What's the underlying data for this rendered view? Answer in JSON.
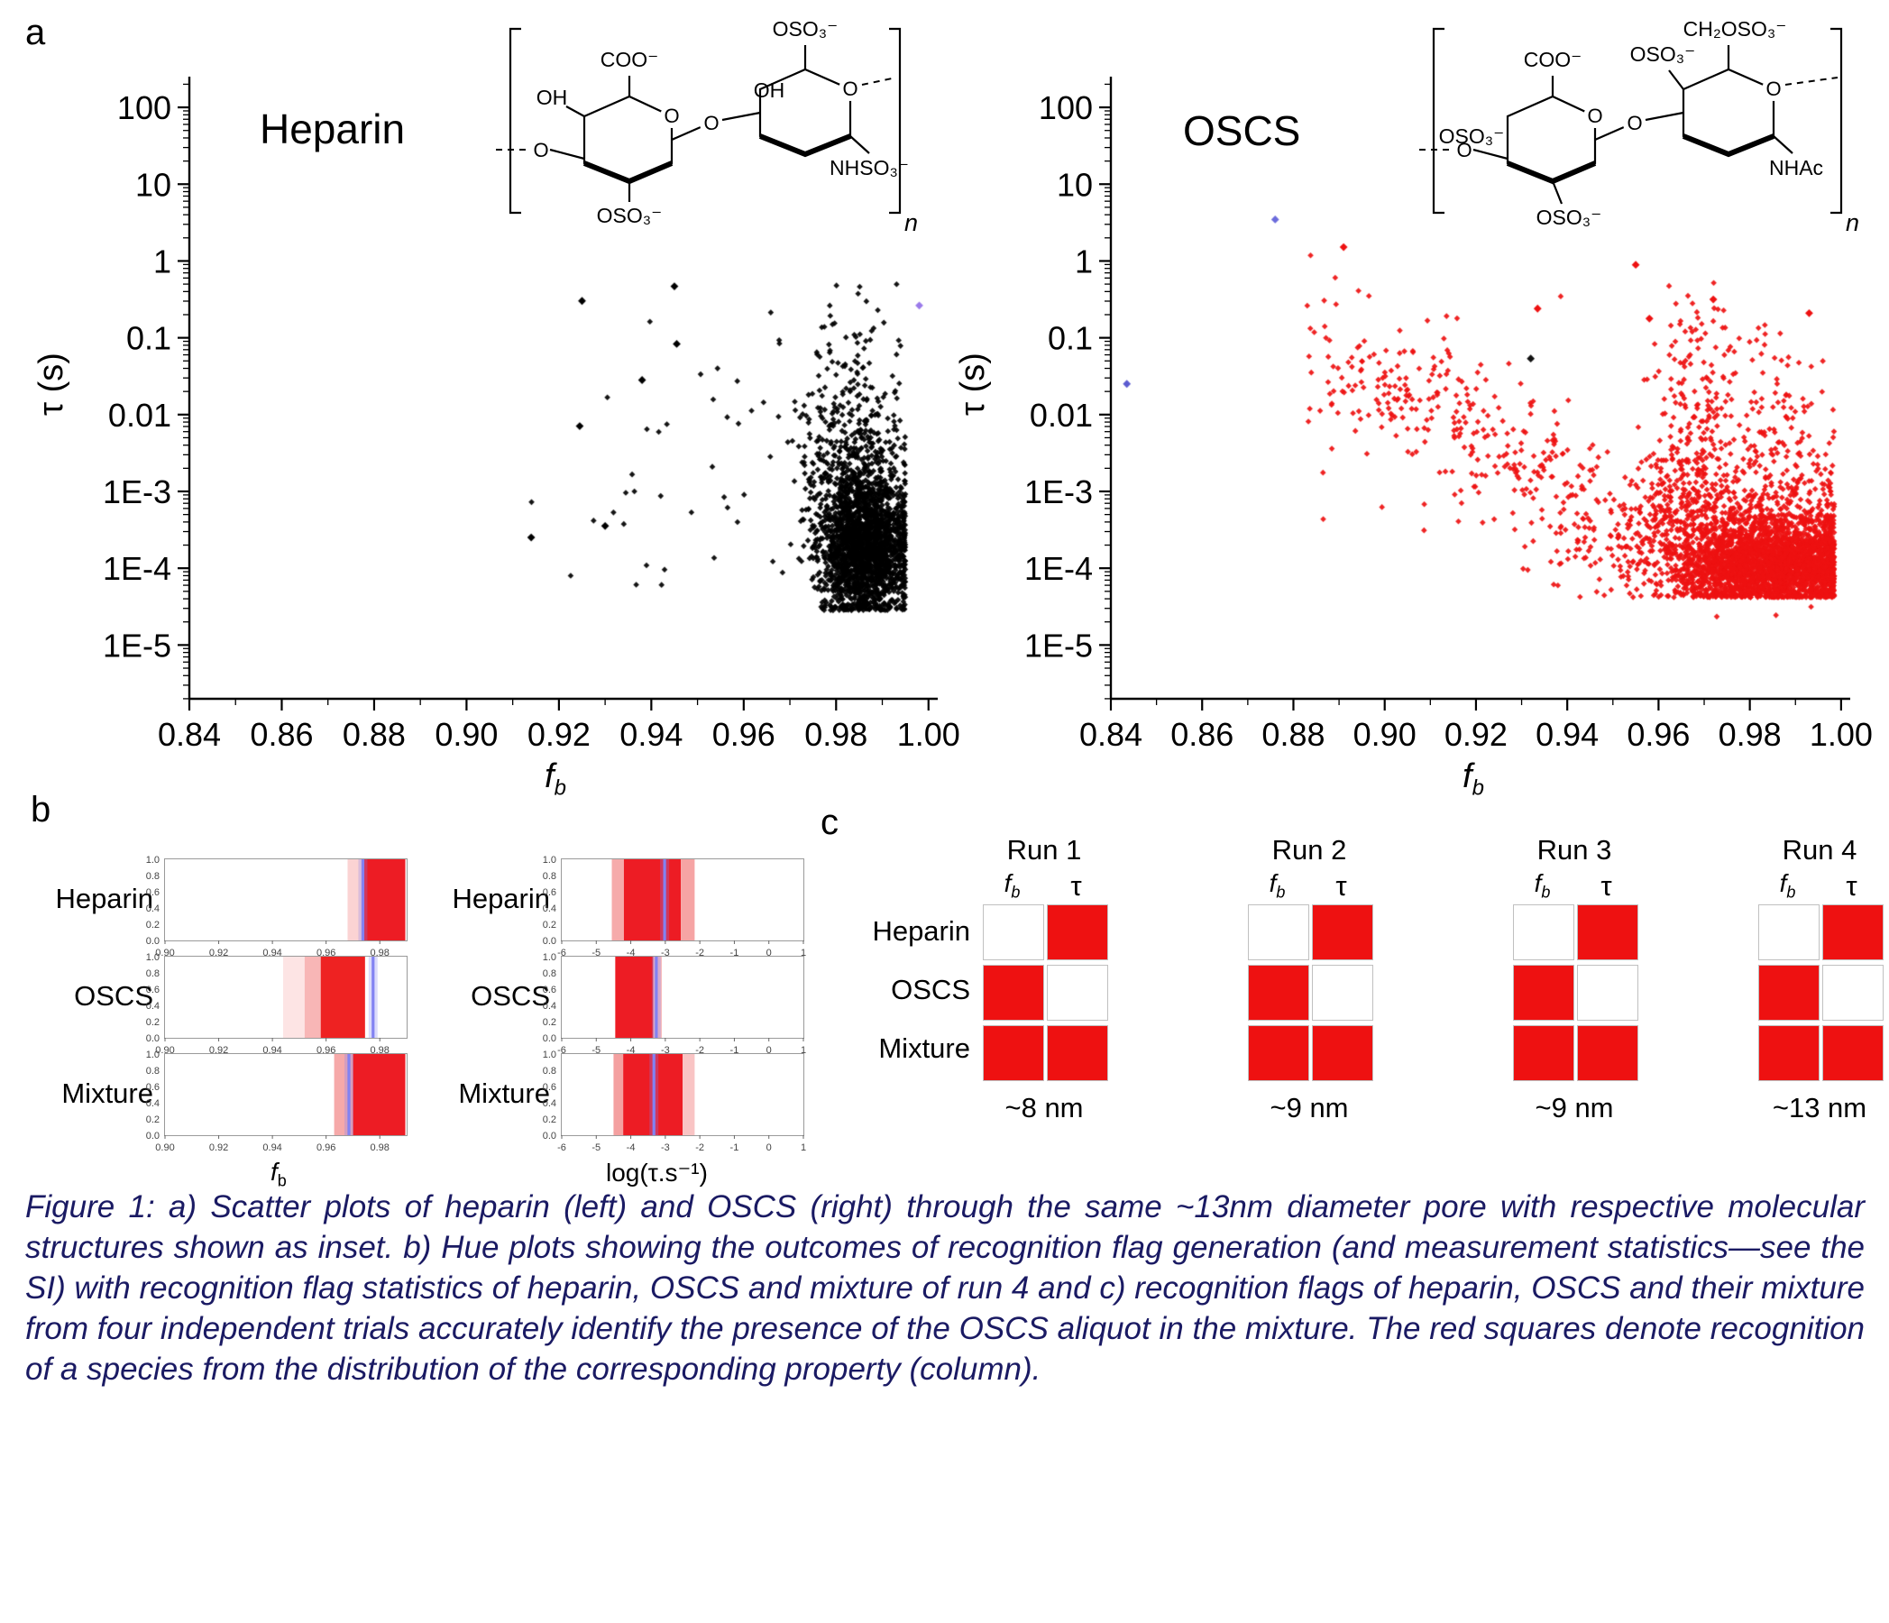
{
  "panel_a": {
    "label": "a"
  },
  "panel_b": {
    "label": "b",
    "xlabel_fb_main": "f",
    "xlabel_fb_sub": "b",
    "xlabel_tau": "log(τ.s⁻¹)"
  },
  "panel_c": {
    "label": "c",
    "col_fb_main": "f",
    "col_fb_sub": "b",
    "col_tau": "τ",
    "row_labels": [
      "Heparin",
      "OSCS",
      "Mixture"
    ],
    "runs": [
      {
        "title": "Run 1",
        "pore": "~8 nm"
      },
      {
        "title": "Run 2",
        "pore": "~9 nm"
      },
      {
        "title": "Run 3",
        "pore": "~9 nm"
      },
      {
        "title": "Run 4",
        "pore": "~13 nm"
      }
    ],
    "flags_by_run": [
      [
        [
          0,
          1
        ],
        [
          1,
          0
        ],
        [
          1,
          1
        ]
      ],
      [
        [
          0,
          1
        ],
        [
          1,
          0
        ],
        [
          1,
          1
        ]
      ],
      [
        [
          0,
          1
        ],
        [
          1,
          0
        ],
        [
          1,
          1
        ]
      ],
      [
        [
          0,
          1
        ],
        [
          1,
          0
        ],
        [
          1,
          1
        ]
      ]
    ],
    "flag_color": "#ee1111"
  },
  "structures": {
    "heparin": {
      "oso3_top": "OSO₃⁻",
      "oh_mid": "OH",
      "coo": "COO⁻",
      "oh_left": "OH",
      "oso3_bottom": "OSO₃⁻",
      "nhso3": "NHSO₃⁻",
      "ring_o": "O",
      "n": "n"
    },
    "oscs": {
      "ch2oso3": "CH₂OSO₃⁻",
      "coo": "COO⁻",
      "oso3_left": "OSO₃⁻",
      "oso3_mid": "OSO₃⁻",
      "oso3_bottom": "OSO₃⁻",
      "nhac": "NHAc",
      "ring_o": "O",
      "n": "n"
    }
  },
  "caption": {
    "text": "Figure 1: a) Scatter plots of heparin (left) and OSCS (right) through the same ~13nm diameter pore with respective molecular structures shown as inset. b) Hue plots showing the outcomes of recognition flag generation (and measurement statistics—see the SI) with recognition flag statistics of heparin, OSCS and mixture of run 4 and c) recognition flags of heparin, OSCS and their mixture from four independent trials accurately identify the presence of the OSCS aliquot in the mixture. The red squares denote recognition of a species from the distribution of the corresponding property (column).",
    "color": "#1a1a63"
  },
  "chart_data": [
    {
      "id": "heparin",
      "type": "scatter",
      "title": "Heparin",
      "xlabel_main": "f",
      "xlabel_sub": "b",
      "ylabel": "τ (s)",
      "xlim": [
        0.84,
        1.002
      ],
      "ylim_log": [
        -5.7,
        2.4
      ],
      "xticks": [
        0.84,
        0.86,
        0.88,
        0.9,
        0.92,
        0.94,
        0.96,
        0.98,
        1.0
      ],
      "ytick_labels": [
        "100",
        "10",
        "1",
        "0.1",
        "0.01",
        "1E-3",
        "1E-4",
        "1E-5"
      ],
      "ytick_logs": [
        2,
        1,
        0,
        -1,
        -2,
        -3,
        -4,
        -5
      ],
      "color": "#000000",
      "seed": 42,
      "clusters": [
        {
          "n": 1900,
          "fb_mean": 0.9862,
          "fb_sd": 0.0048,
          "fb_min": 0.966,
          "fb_max": 0.995,
          "lt_mean": -3.75,
          "lt_sd": 0.45,
          "lt_min": -4.55
        },
        {
          "n": 520,
          "fb_mean": 0.984,
          "fb_sd": 0.006,
          "fb_min": 0.96,
          "fb_max": 0.995,
          "lt_mean": -2.85,
          "lt_sd": 0.6,
          "lt_min": -4.55
        },
        {
          "n": 90,
          "fb_mean": 0.982,
          "fb_sd": 0.007,
          "fb_min": 0.958,
          "fb_max": 0.994,
          "lt_mean": -1.55,
          "lt_sd": 0.55,
          "lt_max": -0.3
        },
        {
          "n": 42,
          "fb_mean": 0.95,
          "fb_sd": 0.02,
          "fb_min": 0.908,
          "fb_max": 0.978,
          "lt_mean": -3.1,
          "lt_sd": 0.95,
          "lt_min": -4.4
        }
      ],
      "outliers": [
        {
          "fb": 0.925,
          "lt": -0.52,
          "color": "#000000"
        },
        {
          "fb": 0.9245,
          "lt": -2.15,
          "color": "#000000"
        },
        {
          "fb": 0.945,
          "lt": -0.33,
          "color": "#000000"
        },
        {
          "fb": 0.9455,
          "lt": -1.08,
          "color": "#000000"
        },
        {
          "fb": 0.938,
          "lt": -1.55,
          "color": "#000000"
        },
        {
          "fb": 0.93,
          "lt": -3.45,
          "color": "#000000"
        },
        {
          "fb": 0.914,
          "lt": -3.6,
          "color": "#000000"
        },
        {
          "fb": 0.998,
          "lt": -0.58,
          "color": "#9b7bea"
        }
      ]
    },
    {
      "id": "oscs",
      "type": "scatter",
      "title": "OSCS",
      "xlabel_main": "f",
      "xlabel_sub": "b",
      "ylabel": "τ (s)",
      "xlim": [
        0.84,
        1.002
      ],
      "ylim_log": [
        -5.7,
        2.4
      ],
      "xticks": [
        0.84,
        0.86,
        0.88,
        0.9,
        0.92,
        0.94,
        0.96,
        0.98,
        1.0
      ],
      "ytick_labels": [
        "100",
        "10",
        "1",
        "0.1",
        "0.01",
        "1E-3",
        "1E-4",
        "1E-5"
      ],
      "ytick_logs": [
        2,
        1,
        0,
        -1,
        -2,
        -3,
        -4,
        -5
      ],
      "color": "#ee1111",
      "seed": 7,
      "clusters": [
        {
          "n": 240,
          "band": true,
          "fb_min": 0.883,
          "fb_max": 0.948,
          "lt_from": -0.95,
          "lt_to": -3.25,
          "lt_sd": 0.45
        },
        {
          "n": 2400,
          "fb_mean": 0.986,
          "fb_sd": 0.011,
          "fb_min": 0.935,
          "fb_max": 0.9985,
          "lt_mean": -3.95,
          "lt_sd": 0.27,
          "lt_min": -4.38
        },
        {
          "n": 950,
          "fb_mean": 0.975,
          "fb_sd": 0.016,
          "fb_min": 0.93,
          "fb_max": 0.9985,
          "lt_mean": -3.55,
          "lt_sd": 0.45,
          "lt_min": -4.38
        },
        {
          "n": 230,
          "fb_mean": 0.968,
          "fb_sd": 0.005,
          "fb_min": 0.954,
          "fb_max": 0.982,
          "lt_mean": -2.15,
          "lt_sd": 0.85,
          "lt_max": -0.1
        },
        {
          "n": 170,
          "fb_mean": 0.988,
          "fb_sd": 0.007,
          "fb_min": 0.965,
          "fb_max": 0.9985,
          "lt_mean": -2.45,
          "lt_sd": 0.75,
          "lt_max": -0.45
        },
        {
          "n": 70,
          "fb_mean": 0.91,
          "fb_sd": 0.012,
          "fb_min": 0.885,
          "fb_max": 0.94,
          "lt_mean": -2.0,
          "lt_sd": 0.8
        }
      ],
      "outliers": [
        {
          "fb": 0.876,
          "lt": 0.54,
          "color": "#6b6bdc"
        },
        {
          "fb": 0.8435,
          "lt": -1.6,
          "color": "#5b5bd0"
        },
        {
          "fb": 0.932,
          "lt": -1.27,
          "color": "#111111"
        },
        {
          "fb": 0.891,
          "lt": 0.18,
          "color": "#ee1111"
        },
        {
          "fb": 0.955,
          "lt": -0.05,
          "color": "#ee1111"
        },
        {
          "fb": 0.9335,
          "lt": -0.62,
          "color": "#ee1111"
        },
        {
          "fb": 0.958,
          "lt": -0.75,
          "color": "#ee1111"
        },
        {
          "fb": 0.972,
          "lt": -0.5,
          "color": "#ee1111"
        },
        {
          "fb": 0.993,
          "lt": -0.68,
          "color": "#ee1111"
        }
      ]
    },
    {
      "id": "hue_fb",
      "type": "heatmap",
      "xlim": [
        0.9,
        0.99
      ],
      "xtick_vals": [
        0.9,
        0.92,
        0.94,
        0.96,
        0.98
      ],
      "xtick_labels": [
        "0.90",
        "0.92",
        "0.94",
        "0.96",
        "0.98"
      ],
      "ytick_labels": [
        "1.0",
        "0.8",
        "0.6",
        "0.4",
        "0.2",
        "0.0"
      ],
      "marker_color": "#8282f2",
      "rows": [
        {
          "label": "Heparin",
          "marker": 0.9737,
          "bands": [
            {
              "from": 0.968,
              "to": 0.974,
              "color": "#fbd3d3"
            },
            {
              "from": 0.974,
              "to": 0.9895,
              "color": "#ed1c24"
            }
          ]
        },
        {
          "label": "OSCS",
          "marker": 0.9775,
          "bands": [
            {
              "from": 0.944,
              "to": 0.952,
              "color": "#fde4e4"
            },
            {
              "from": 0.952,
              "to": 0.958,
              "color": "#f8b6b6"
            },
            {
              "from": 0.958,
              "to": 0.9745,
              "color": "#ee2222"
            }
          ]
        },
        {
          "label": "Mixture",
          "marker": 0.9685,
          "bands": [
            {
              "from": 0.963,
              "to": 0.97,
              "color": "#f6a9a9"
            },
            {
              "from": 0.97,
              "to": 0.9895,
              "color": "#ed1c24"
            }
          ]
        }
      ]
    },
    {
      "id": "hue_tau",
      "type": "heatmap",
      "xlim": [
        -6,
        1
      ],
      "xtick_vals": [
        -6,
        -5,
        -4,
        -3,
        -2,
        -1,
        0,
        1
      ],
      "xtick_labels": [
        "-6",
        "-5",
        "-4",
        "-3",
        "-2",
        "-1",
        "0",
        "1"
      ],
      "ytick_labels": [
        "1.0",
        "0.8",
        "0.6",
        "0.4",
        "0.2",
        "0.0"
      ],
      "marker_color": "#8282f2",
      "rows": [
        {
          "label": "Heparin",
          "marker": -3.02,
          "bands": [
            {
              "from": -4.55,
              "to": -4.2,
              "color": "#f6abab"
            },
            {
              "from": -4.2,
              "to": -2.55,
              "color": "#ed1c24"
            },
            {
              "from": -2.55,
              "to": -2.15,
              "color": "#f6a4a4"
            }
          ]
        },
        {
          "label": "OSCS",
          "marker": -3.26,
          "bands": [
            {
              "from": -4.45,
              "to": -3.35,
              "color": "#ed1c24"
            },
            {
              "from": -3.35,
              "to": -3.1,
              "color": "#f8bcbc"
            }
          ]
        },
        {
          "label": "Mixture",
          "marker": -3.33,
          "bands": [
            {
              "from": -4.5,
              "to": -4.22,
              "color": "#f4a0a0"
            },
            {
              "from": -4.22,
              "to": -2.5,
              "color": "#ed1c24"
            },
            {
              "from": -2.5,
              "to": -2.15,
              "color": "#f9c4c4"
            }
          ]
        }
      ]
    }
  ]
}
